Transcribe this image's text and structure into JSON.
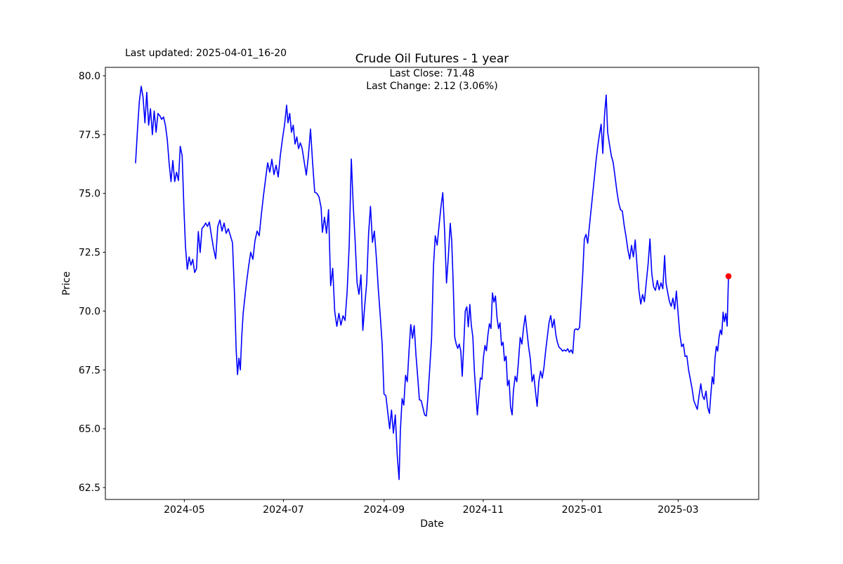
{
  "figure": {
    "title": "Crude Oil Futures - 1 year",
    "last_updated": "Last updated: 2025-04-01_16-20",
    "annotation_line1": "Last Close: 71.48",
    "annotation_line2": "Last Change: 2.12 (3.06%)",
    "xlabel": "Date",
    "ylabel": "Price"
  },
  "chart_data": {
    "type": "line",
    "title": "Crude Oil Futures - 1 year",
    "xlabel": "Date",
    "ylabel": "Price",
    "x_start_date": "2024-04-01",
    "x_end_date": "2025-04-01",
    "x_span_days": 365,
    "ylim": [
      62.0,
      80.36
    ],
    "grid": false,
    "legend": false,
    "yticks": [
      80.0,
      77.5,
      75.0,
      72.5,
      70.0,
      67.5,
      65.0,
      62.5
    ],
    "xticks": [
      {
        "label": "2024-05",
        "day": 30
      },
      {
        "label": "2024-07",
        "day": 91
      },
      {
        "label": "2024-09",
        "day": 153
      },
      {
        "label": "2024-11",
        "day": 214
      },
      {
        "label": "2025-01",
        "day": 275
      },
      {
        "label": "2025-03",
        "day": 334
      }
    ],
    "line_color": "#0000ff",
    "marker_color": "#ff0000",
    "last_close": 71.48,
    "prev_close": 69.36,
    "last_change": 2.12,
    "last_change_pct": 3.06,
    "series_name": "Crude Oil Futures price",
    "segments": [
      {
        "d0": 0.0,
        "d1": 29.8,
        "p": [
          76.3,
          77.7,
          78.9,
          79.55,
          79.1,
          78.0,
          79.3,
          77.9,
          78.6,
          77.5,
          78.5,
          77.6,
          78.4,
          78.3,
          78.15,
          78.25,
          77.9,
          77.3,
          76.3,
          75.5,
          76.4,
          75.5,
          75.9,
          75.55,
          77.0,
          76.6,
          74.3
        ]
      },
      {
        "d0": 30.7,
        "d1": 45.4,
        "p": [
          72.75,
          71.77,
          72.3,
          71.95,
          72.2,
          71.64,
          71.8,
          73.38,
          72.49,
          73.51,
          73.6,
          73.74,
          73.6,
          73.78
        ]
      },
      {
        "d0": 46.7,
        "d1": 59.7,
        "p": [
          73.2,
          72.66,
          72.22,
          73.6,
          73.87,
          73.4,
          73.74,
          73.3,
          73.5,
          73.2,
          72.9
        ]
      },
      {
        "d0": 61.0,
        "d1": 66.2,
        "p": [
          70.5,
          68.4,
          67.3,
          68.0,
          67.5,
          68.9,
          69.9
        ]
      },
      {
        "d0": 67.0,
        "d1": 93.0,
        "p": [
          70.4,
          71.2,
          71.9,
          72.5,
          72.2,
          73.0,
          73.4,
          73.2,
          74.1,
          74.9,
          75.6,
          76.3,
          75.9,
          76.45,
          75.8,
          76.2,
          75.7,
          76.6,
          77.3,
          77.9,
          78.75
        ]
      },
      {
        "d0": 93.8,
        "d1": 102.5,
        "p": [
          78.0,
          78.4,
          77.6,
          77.9,
          77.1,
          77.4,
          76.9,
          77.15,
          76.93
        ]
      },
      {
        "d0": 103.8,
        "d1": 114.2,
        "p": [
          76.35,
          75.78,
          76.6,
          77.73,
          76.3,
          75.05,
          75.0,
          74.85,
          74.4
        ]
      },
      {
        "d0": 115.0,
        "d1": 131.5,
        "p": [
          73.35,
          73.99,
          73.3,
          74.31,
          71.08,
          71.82,
          69.97,
          69.35,
          69.9,
          69.4,
          69.8,
          69.6,
          70.8,
          72.8
        ]
      },
      {
        "d0": 132.8,
        "d1": 147.0,
        "p": [
          76.46,
          74.5,
          73.0,
          71.2,
          70.71,
          71.54,
          69.18,
          70.22,
          71.2,
          73.3,
          74.45,
          72.92,
          73.4
        ]
      },
      {
        "d0": 148.3,
        "d1": 162.2,
        "p": [
          72.2,
          70.9,
          69.8,
          68.6,
          66.48,
          66.4,
          65.69,
          65.0,
          65.79,
          64.81,
          65.59,
          63.9,
          62.84
        ]
      },
      {
        "d0": 163.0,
        "d1": 179.0,
        "p": [
          64.9,
          66.28,
          66.0,
          67.27,
          67.0,
          68.3,
          69.43,
          68.84,
          69.38,
          68.15,
          67.2,
          66.23,
          66.2,
          65.9,
          65.59,
          65.54
        ]
      },
      {
        "d0": 179.9,
        "d1": 193.7,
        "p": [
          66.3,
          67.5,
          68.8,
          71.89,
          73.2,
          72.8,
          73.6,
          74.4,
          75.03,
          73.4,
          71.19,
          72.3,
          73.73
        ]
      },
      {
        "d0": 194.6,
        "d1": 231.8,
        "p": [
          73.0,
          71.2,
          68.9,
          68.6,
          68.41,
          68.6,
          68.31,
          67.23,
          68.6,
          70.0,
          70.18,
          69.33,
          70.28,
          69.4,
          68.9,
          67.5,
          66.5,
          65.59,
          66.4,
          67.16,
          67.1,
          68.0,
          68.54,
          68.31,
          69.0,
          69.46,
          69.26,
          70.77,
          70.38,
          70.64,
          69.72,
          69.26,
          69.5,
          68.54,
          68.67,
          67.88,
          68.08,
          66.83,
          67.06,
          65.92,
          65.59
        ]
      },
      {
        "d0": 232.6,
        "d1": 273.3,
        "p": [
          66.6,
          67.23,
          67.0,
          67.88,
          68.88,
          68.6,
          69.3,
          69.81,
          69.1,
          68.45,
          67.95,
          67.0,
          67.3,
          66.6,
          65.95,
          67.0,
          67.45,
          67.15,
          67.6,
          68.3,
          68.9,
          69.5,
          69.81,
          69.3,
          69.65,
          69.0,
          68.65,
          68.45,
          68.4,
          68.3,
          68.35,
          68.3,
          68.4,
          68.25,
          68.35,
          68.2,
          69.2,
          69.25,
          69.2,
          69.3
        ]
      },
      {
        "d0": 274.2,
        "d1": 289.7,
        "p": [
          70.3,
          71.5,
          73.07,
          73.26,
          72.88,
          73.6,
          74.3,
          75.0,
          75.7,
          76.4,
          77.0,
          77.5,
          77.94,
          76.7,
          78.3,
          79.18
        ]
      },
      {
        "d0": 290.6,
        "d1": 325.7,
        "p": [
          77.6,
          77.08,
          76.6,
          76.32,
          75.74,
          75.1,
          74.6,
          74.31,
          74.25,
          73.64,
          73.17,
          72.6,
          72.21,
          72.79,
          72.3,
          73.02,
          71.9,
          70.88,
          70.3,
          70.7,
          70.4,
          71.2,
          72.0,
          73.07,
          71.6,
          71.03,
          70.88,
          71.3,
          70.9,
          71.2,
          70.95,
          72.36
        ]
      },
      {
        "d0": 326.5,
        "d1": 353.3,
        "p": [
          71.2,
          70.78,
          70.41,
          70.2,
          70.55,
          70.08,
          70.85,
          69.9,
          69.0,
          68.49,
          68.6,
          68.07,
          68.1,
          67.5,
          67.1,
          66.7,
          66.2,
          66.0,
          65.82,
          66.4,
          66.91,
          66.4,
          66.24,
          66.6,
          65.9,
          65.65
        ]
      },
      {
        "d0": 354.2,
        "d1": 365.0,
        "p": [
          66.5,
          67.2,
          66.9,
          68.0,
          68.5,
          68.3,
          68.9,
          69.2,
          69.0,
          69.95,
          69.55,
          69.9,
          69.36,
          71.48
        ]
      }
    ]
  }
}
